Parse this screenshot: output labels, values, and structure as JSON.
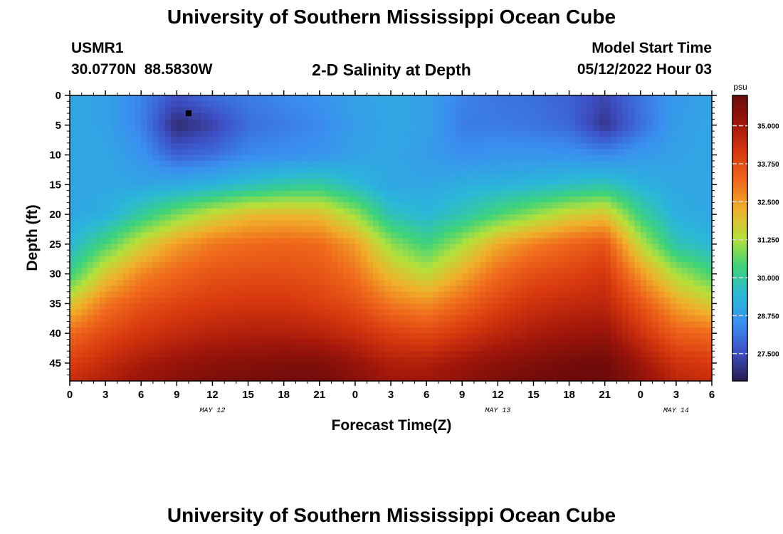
{
  "page": {
    "title": "University of Southern Mississippi Ocean Cube",
    "footer_title": "University of Southern Mississippi Ocean Cube",
    "station_id": "USMR1",
    "station_coords": "30.0770N  88.5830W",
    "plot_title": "2-D Salinity at Depth",
    "model_start_label": "Model Start Time",
    "model_start_value": "05/12/2022 Hour 03"
  },
  "chart_data": {
    "type": "heatmap",
    "title": "2-D Salinity at Depth",
    "xlabel": "Forecast Time(Z)",
    "ylabel": "Depth (ft)",
    "x_tick_labels": [
      "0",
      "3",
      "6",
      "9",
      "12",
      "15",
      "18",
      "21",
      "0",
      "3",
      "6",
      "9",
      "12",
      "15",
      "18",
      "21",
      "0",
      "3",
      "6"
    ],
    "x_range_hours": [
      0,
      54
    ],
    "date_labels": [
      {
        "text": "MAY 12",
        "at_hour": 12
      },
      {
        "text": "MAY 13",
        "at_hour": 36
      },
      {
        "text": "MAY 14",
        "at_hour": 51
      }
    ],
    "y_ticks": [
      0,
      5,
      10,
      15,
      20,
      25,
      30,
      35,
      40,
      45
    ],
    "y_range_ft": [
      0,
      48
    ],
    "y_inverted": true,
    "colorbar": {
      "unit": "psu",
      "range": [
        26.6,
        36.0
      ],
      "tick_values": [
        35.0,
        33.75,
        32.5,
        31.25,
        30.0,
        28.75,
        27.5
      ],
      "tick_labels": [
        "35.000",
        "33.750",
        "32.500",
        "31.250",
        "30.000",
        "28.750",
        "27.500"
      ],
      "colors": [
        "#2a1a4a",
        "#3d4fc4",
        "#3a8ff0",
        "#2ab8d8",
        "#3ed37a",
        "#b6e03a",
        "#f0b02a",
        "#f06a1c",
        "#d8380e",
        "#a0160a",
        "#6a0a0a"
      ]
    },
    "marker": {
      "hour": 10,
      "depth_ft": 3
    },
    "salinity_field": {
      "hours": [
        0,
        3,
        6,
        9,
        12,
        15,
        18,
        21,
        24,
        27,
        30,
        33,
        36,
        39,
        42,
        45,
        48,
        51,
        54
      ],
      "depths_ft": [
        0,
        5,
        10,
        15,
        20,
        25,
        30,
        35,
        40,
        45,
        48
      ],
      "values": [
        [
          29.0,
          28.9,
          28.3,
          27.6,
          28.0,
          28.2,
          28.4,
          28.6,
          28.9,
          29.0,
          28.9,
          28.3,
          28.1,
          28.0,
          27.8,
          27.4,
          28.1,
          28.7,
          28.9
        ],
        [
          29.0,
          28.9,
          28.3,
          26.9,
          27.3,
          28.0,
          28.2,
          28.4,
          28.8,
          29.0,
          28.9,
          28.2,
          28.2,
          28.1,
          27.9,
          27.1,
          28.0,
          28.8,
          29.0
        ],
        [
          29.0,
          29.0,
          28.6,
          27.8,
          28.0,
          28.4,
          28.5,
          28.6,
          28.9,
          29.0,
          28.8,
          28.5,
          28.6,
          28.6,
          28.6,
          28.4,
          28.7,
          28.9,
          29.0
        ],
        [
          29.0,
          29.0,
          29.0,
          29.1,
          29.3,
          29.6,
          29.9,
          30.0,
          29.5,
          29.0,
          29.0,
          29.2,
          29.3,
          29.4,
          29.6,
          29.8,
          29.3,
          29.0,
          29.0
        ],
        [
          29.0,
          29.2,
          30.0,
          30.8,
          31.5,
          32.0,
          32.1,
          32.0,
          31.1,
          29.7,
          29.4,
          29.8,
          30.4,
          31.0,
          31.6,
          31.9,
          30.2,
          29.2,
          29.0
        ],
        [
          29.4,
          30.4,
          31.6,
          32.5,
          33.0,
          33.2,
          33.3,
          33.2,
          32.5,
          31.0,
          30.3,
          31.2,
          32.3,
          32.9,
          33.3,
          33.6,
          31.4,
          29.8,
          29.4
        ],
        [
          30.2,
          31.8,
          32.8,
          33.3,
          33.6,
          33.7,
          33.7,
          33.6,
          33.1,
          32.0,
          31.4,
          32.3,
          33.2,
          33.7,
          33.9,
          34.2,
          32.6,
          31.2,
          30.4
        ],
        [
          31.8,
          33.0,
          33.6,
          33.9,
          34.1,
          34.2,
          34.2,
          34.0,
          33.7,
          33.0,
          32.7,
          33.3,
          33.9,
          34.3,
          34.5,
          34.6,
          33.6,
          32.4,
          31.7
        ],
        [
          33.2,
          33.8,
          34.2,
          34.5,
          34.7,
          34.8,
          34.8,
          34.7,
          34.4,
          34.0,
          33.8,
          34.2,
          34.6,
          34.9,
          35.1,
          35.2,
          34.3,
          33.4,
          33.2
        ],
        [
          34.0,
          34.5,
          34.9,
          35.2,
          35.4,
          35.5,
          35.6,
          35.6,
          35.2,
          34.8,
          34.8,
          35.1,
          35.4,
          35.6,
          35.8,
          35.9,
          35.1,
          34.3,
          34.1
        ],
        [
          34.4,
          34.8,
          35.2,
          35.5,
          35.7,
          35.8,
          35.9,
          35.9,
          35.5,
          35.1,
          35.1,
          35.4,
          35.7,
          35.9,
          36.0,
          36.0,
          35.4,
          34.6,
          34.4
        ]
      ]
    }
  }
}
